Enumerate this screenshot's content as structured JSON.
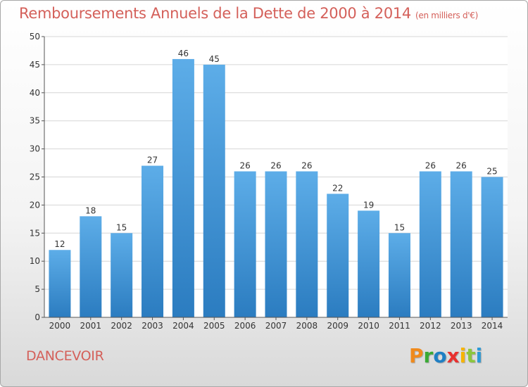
{
  "chart_data": {
    "type": "bar",
    "title": "Remboursements Annuels de la Dette de 2000 à 2014",
    "subtitle": "(en milliers d'€)",
    "categories": [
      "2000",
      "2001",
      "2002",
      "2003",
      "2004",
      "2005",
      "2006",
      "2007",
      "2008",
      "2009",
      "2010",
      "2011",
      "2012",
      "2013",
      "2014"
    ],
    "values": [
      12,
      18,
      15,
      27,
      46,
      45,
      26,
      26,
      26,
      22,
      19,
      15,
      26,
      26,
      25
    ],
    "ylim": [
      0,
      50
    ],
    "yticks": [
      0,
      5,
      10,
      15,
      20,
      25,
      30,
      35,
      40,
      45,
      50
    ],
    "grid": true,
    "bar_color_top": "#5dade8",
    "bar_color_bottom": "#2b7cc0"
  },
  "footer": {
    "commune": "DANCEVOIR",
    "brand": "Proxiti",
    "brand_colors": [
      "#f08a1c",
      "#3aaa35",
      "#1f7fc4",
      "#e8312f",
      "#f6b400",
      "#8cc63e",
      "#2e9ad6"
    ]
  }
}
